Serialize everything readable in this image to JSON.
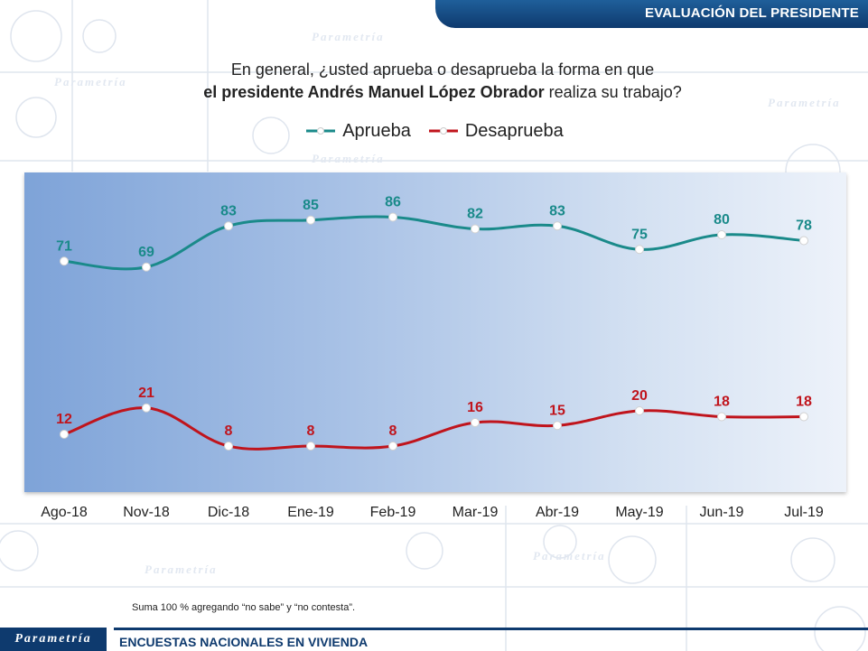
{
  "header": {
    "section_title": "EVALUACIÓN DEL PRESIDENTE"
  },
  "question": {
    "line1": "En general, ¿usted aprueba o desaprueba la forma en que",
    "line2_bold": "el presidente Andrés Manuel López Obrador",
    "line2_rest": " realiza su trabajo?"
  },
  "watermark": {
    "brand": "Parametría"
  },
  "chart_data": {
    "type": "line",
    "categories": [
      "Ago-18",
      "Nov-18",
      "Dic-18",
      "Ene-19",
      "Feb-19",
      "Mar-19",
      "Abr-19",
      "May-19",
      "Jun-19",
      "Jul-19"
    ],
    "series": [
      {
        "name": "Aprueba",
        "color": "#1a8a8a",
        "values": [
          71,
          69,
          83,
          85,
          86,
          82,
          83,
          75,
          80,
          78
        ]
      },
      {
        "name": "Desaprueba",
        "color": "#c0141c",
        "values": [
          12,
          21,
          8,
          8,
          8,
          16,
          15,
          20,
          18,
          18
        ]
      }
    ],
    "ylim": [
      0,
      100
    ],
    "grid": false,
    "legend": "top-center",
    "smooth": true
  },
  "footnote": "Suma 100 %  agregando “no sabe” y “no contesta”.",
  "footer": {
    "logo_text": "Parametría",
    "survey_label": "ENCUESTAS NACIONALES  EN VIVIENDA"
  }
}
